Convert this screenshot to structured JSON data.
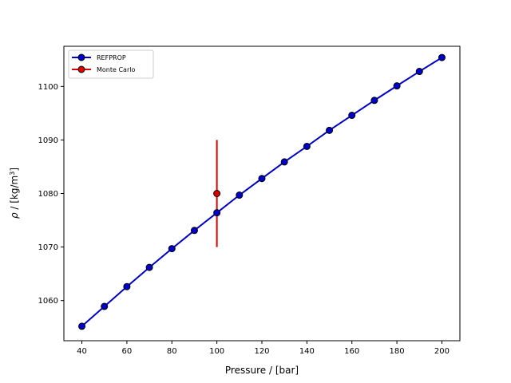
{
  "chart_data": {
    "type": "line",
    "xlabel": "Pressure / [bar]",
    "ylabel": {
      "symbol": "ρ",
      "unit_prefix": " / [kg/m",
      "unit_exp": "3",
      "unit_suffix": "]"
    },
    "xlim": [
      32,
      208
    ],
    "ylim": [
      1052.5,
      1107.5
    ],
    "xticks": [
      40,
      60,
      80,
      100,
      120,
      140,
      160,
      180,
      200
    ],
    "yticks": [
      1060,
      1070,
      1080,
      1090,
      1100
    ],
    "grid": false,
    "legend_position": "top-left",
    "series": [
      {
        "name": "REFPROP",
        "color": "#0000cc",
        "marker_color": "#0000cc",
        "x": [
          40,
          50,
          60,
          70,
          80,
          90,
          100,
          110,
          120,
          130,
          140,
          150,
          160,
          170,
          180,
          190,
          200
        ],
        "y": [
          1055.2,
          1058.9,
          1062.6,
          1066.2,
          1069.7,
          1073.1,
          1076.4,
          1079.7,
          1082.8,
          1085.9,
          1088.8,
          1091.8,
          1094.6,
          1097.4,
          1100.1,
          1102.8,
          1105.4
        ]
      },
      {
        "name": "Monte Carlo",
        "color": "#dd0000",
        "marker_color": "#dd0000",
        "x": [
          100
        ],
        "y": [
          1080
        ],
        "yerr": [
          10
        ]
      }
    ]
  }
}
